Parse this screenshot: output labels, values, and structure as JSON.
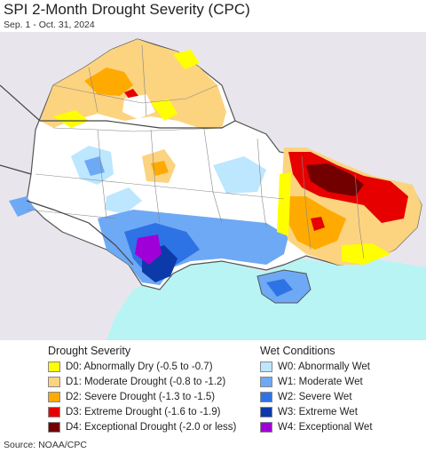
{
  "title": "SPI 2-Month Drought Severity (CPC)",
  "subtitle": "Sep. 1 - Oct. 31, 2024",
  "source": "Source: NOAA/CPC",
  "legend": {
    "drought_title": "Drought Severity",
    "wet_title": "Wet Conditions",
    "drought_items": [
      {
        "label": "D0: Abnormally Dry (-0.5 to -0.7)",
        "color": "#ffff00"
      },
      {
        "label": "D1: Moderate Drought (-0.8 to -1.2)",
        "color": "#fcd37f"
      },
      {
        "label": "D2: Severe Drought (-1.3 to -1.5)",
        "color": "#ffaa00"
      },
      {
        "label": "D3: Extreme Drought (-1.6 to -1.9)",
        "color": "#e60000"
      },
      {
        "label": "D4: Exceptional Drought (-2.0 or less)",
        "color": "#730000"
      }
    ],
    "wet_items": [
      {
        "label": "W0: Abnormally Wet",
        "color": "#bde6ff"
      },
      {
        "label": "W1: Moderate Wet",
        "color": "#6ea9f5"
      },
      {
        "label": "W2: Severe Wet",
        "color": "#2e73e6"
      },
      {
        "label": "W3: Extreme Wet",
        "color": "#0c3aa8"
      },
      {
        "label": "W4: Exceptional Wet",
        "color": "#a000d8"
      }
    ]
  },
  "colors": {
    "background_land": "#e8e6ec",
    "country_fill": "#ffffff",
    "sea": "#b8f4f4",
    "borders": "#666666"
  }
}
